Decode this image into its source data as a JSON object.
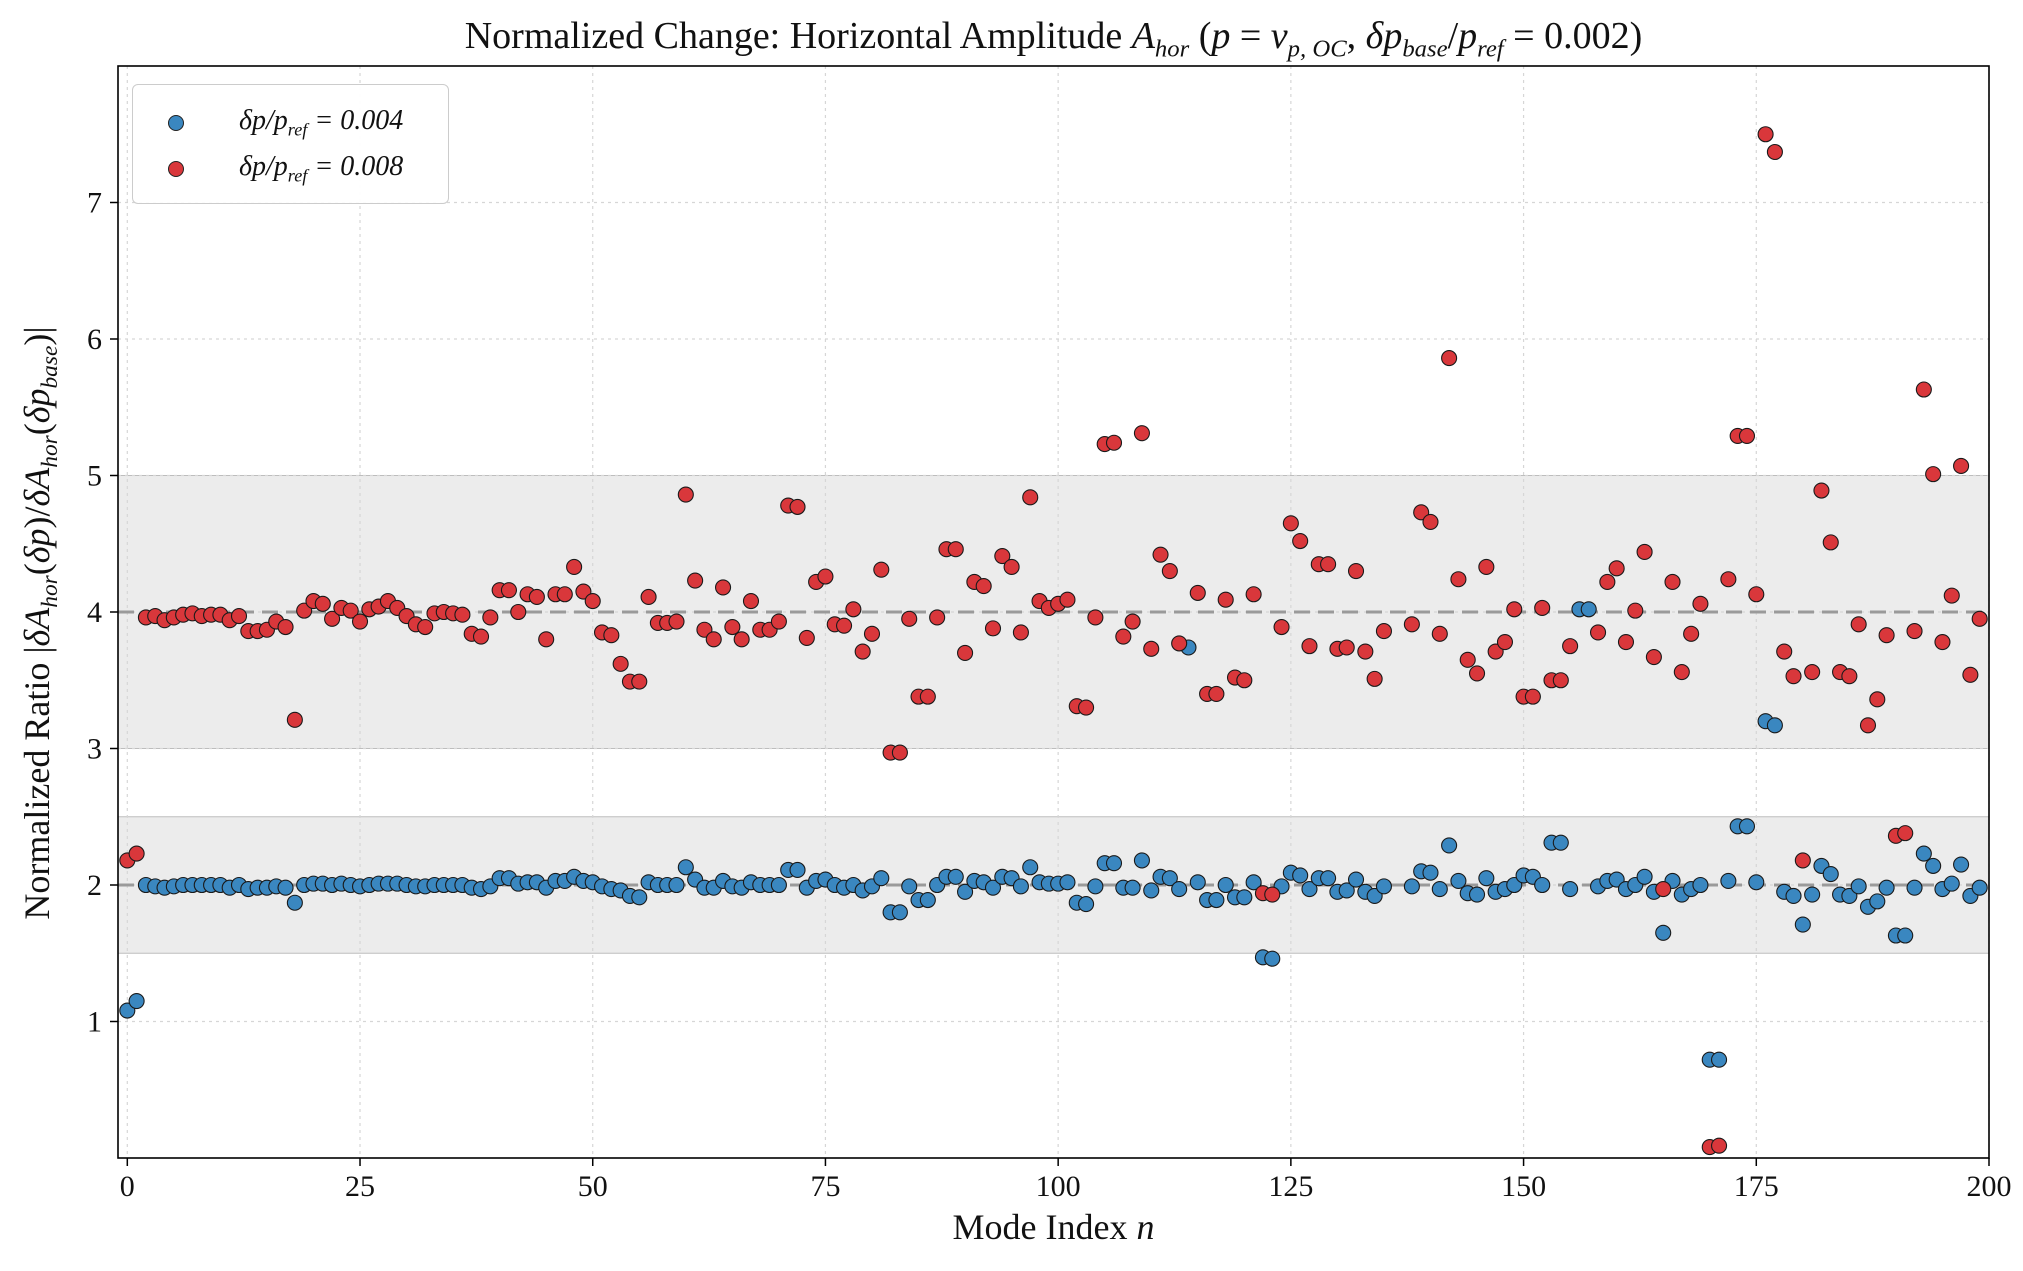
{
  "chart_data": {
    "type": "scatter",
    "title": "Normalized Change: Horizontal Amplitude A_hor (p = v_p,OC, δp_base/p_ref = 0.002)",
    "xlabel": "Mode Index n",
    "ylabel": "Normalized Ratio |δA_hor(δp)/δA_hor(δp_base)|",
    "xlim": [
      -1,
      200
    ],
    "ylim": [
      0,
      8
    ],
    "x_ticks": [
      "0",
      "25",
      "50",
      "75",
      "100",
      "125",
      "150",
      "175",
      "200"
    ],
    "y_ticks": [
      "1",
      "2",
      "3",
      "4",
      "5",
      "6",
      "7"
    ],
    "grid": true,
    "legend_position": "top-left",
    "reference_lines": [
      2,
      4
    ],
    "bands": [
      [
        1.5,
        2.5
      ],
      [
        3,
        5
      ]
    ],
    "series": [
      {
        "name": "δp/p_ref = 0.004",
        "color": "#3a87c0",
        "x": [
          0,
          1,
          2,
          3,
          4,
          5,
          6,
          7,
          8,
          9,
          10,
          11,
          12,
          13,
          14,
          15,
          16,
          17,
          18,
          19,
          20,
          21,
          22,
          23,
          24,
          25,
          26,
          27,
          28,
          29,
          30,
          31,
          32,
          33,
          34,
          35,
          36,
          37,
          38,
          39,
          40,
          41,
          42,
          43,
          44,
          45,
          46,
          47,
          48,
          49,
          50,
          51,
          52,
          53,
          54,
          55,
          56,
          57,
          58,
          59,
          60,
          61,
          62,
          63,
          64,
          65,
          66,
          67,
          68,
          69,
          70,
          71,
          72,
          73,
          74,
          75,
          76,
          77,
          78,
          79,
          80,
          81,
          82,
          83,
          84,
          85,
          86,
          87,
          88,
          89,
          90,
          91,
          92,
          93,
          94,
          95,
          96,
          97,
          98,
          99,
          100,
          101,
          102,
          103,
          104,
          105,
          106,
          107,
          108,
          109,
          110,
          111,
          112,
          113,
          114,
          115,
          116,
          117,
          118,
          119,
          120,
          121,
          122,
          123,
          124,
          125,
          126,
          127,
          128,
          129,
          130,
          131,
          132,
          133,
          134,
          135,
          138,
          139,
          140,
          141,
          142,
          143,
          144,
          145,
          146,
          147,
          148,
          149,
          150,
          151,
          152,
          153,
          154,
          155,
          156,
          157,
          158,
          159,
          160,
          161,
          162,
          163,
          164,
          165,
          166,
          167,
          168,
          169,
          170,
          171,
          172,
          173,
          174,
          175,
          176,
          177,
          178,
          179,
          180,
          181,
          182,
          183,
          184,
          185,
          186,
          187,
          188,
          189,
          190,
          191,
          192,
          193,
          194,
          195,
          196,
          197,
          198,
          199
        ],
        "y": [
          1.08,
          1.15,
          2.0,
          1.99,
          1.98,
          1.99,
          2.0,
          2.0,
          2.0,
          2.0,
          2.0,
          1.98,
          2.0,
          1.97,
          1.98,
          1.98,
          1.99,
          1.98,
          1.87,
          2.0,
          2.01,
          2.01,
          2.0,
          2.01,
          2.0,
          1.99,
          2.0,
          2.01,
          2.01,
          2.01,
          2.0,
          1.99,
          1.99,
          2.0,
          2.0,
          2.0,
          2.0,
          1.98,
          1.97,
          1.99,
          2.05,
          2.05,
          2.01,
          2.02,
          2.02,
          1.98,
          2.03,
          2.03,
          2.06,
          2.03,
          2.02,
          1.99,
          1.97,
          1.96,
          1.92,
          1.91,
          2.02,
          2.0,
          2.0,
          2.0,
          2.13,
          2.04,
          1.98,
          1.98,
          2.03,
          1.99,
          1.98,
          2.02,
          2.0,
          2.0,
          2.0,
          2.11,
          2.11,
          1.98,
          2.03,
          2.04,
          2.0,
          1.98,
          2.0,
          1.96,
          1.99,
          2.05,
          1.8,
          1.8,
          1.99,
          1.89,
          1.89,
          2.0,
          2.06,
          2.06,
          1.95,
          2.03,
          2.02,
          1.98,
          2.06,
          2.05,
          1.99,
          2.13,
          2.02,
          2.01,
          2.01,
          2.02,
          1.87,
          1.86,
          1.99,
          2.16,
          2.16,
          1.98,
          1.98,
          2.18,
          1.96,
          2.06,
          2.05,
          1.97,
          3.74,
          2.02,
          1.89,
          1.89,
          2.0,
          1.91,
          1.91,
          2.02,
          1.47,
          1.46,
          1.99,
          2.09,
          2.07,
          1.97,
          2.05,
          2.05,
          1.95,
          1.96,
          2.04,
          1.95,
          1.92,
          1.99,
          1.99,
          2.1,
          2.09,
          1.97,
          2.29,
          2.03,
          1.94,
          1.93,
          2.05,
          1.95,
          1.97,
          2.0,
          2.07,
          2.06,
          2.0,
          2.31,
          2.31,
          1.97,
          4.02,
          4.02,
          1.99,
          2.03,
          2.04,
          1.97,
          2.0,
          2.06,
          1.95,
          1.65,
          2.03,
          1.93,
          1.97,
          2.0,
          0.72,
          0.72,
          2.03,
          2.43,
          2.43,
          2.02,
          3.2,
          3.17,
          1.95,
          1.92,
          1.71,
          1.93,
          2.14,
          2.08,
          1.93,
          1.92,
          1.99,
          1.84,
          1.88,
          1.98,
          1.63,
          1.63,
          1.98,
          2.23,
          2.14,
          1.97,
          2.01,
          2.15,
          1.92,
          1.98
        ]
      },
      {
        "name": "δp/p_ref = 0.008",
        "color": "#d9373b",
        "x": [
          0,
          1,
          2,
          3,
          4,
          5,
          6,
          7,
          8,
          9,
          10,
          11,
          12,
          13,
          14,
          15,
          16,
          17,
          18,
          19,
          20,
          21,
          22,
          23,
          24,
          25,
          26,
          27,
          28,
          29,
          30,
          31,
          32,
          33,
          34,
          35,
          36,
          37,
          38,
          39,
          40,
          41,
          42,
          43,
          44,
          45,
          46,
          47,
          48,
          49,
          50,
          51,
          52,
          53,
          54,
          55,
          56,
          57,
          58,
          59,
          60,
          61,
          62,
          63,
          64,
          65,
          66,
          67,
          68,
          69,
          70,
          71,
          72,
          73,
          74,
          75,
          76,
          77,
          78,
          79,
          80,
          81,
          82,
          83,
          84,
          85,
          86,
          87,
          88,
          89,
          90,
          91,
          92,
          93,
          94,
          95,
          96,
          97,
          98,
          99,
          100,
          101,
          102,
          103,
          104,
          105,
          106,
          107,
          108,
          109,
          110,
          111,
          112,
          113,
          115,
          116,
          117,
          118,
          119,
          120,
          121,
          122,
          123,
          124,
          125,
          126,
          127,
          128,
          129,
          130,
          131,
          132,
          133,
          134,
          135,
          138,
          139,
          140,
          141,
          142,
          143,
          144,
          145,
          146,
          147,
          148,
          149,
          150,
          151,
          152,
          153,
          154,
          155,
          158,
          159,
          160,
          161,
          162,
          163,
          164,
          165,
          166,
          167,
          168,
          169,
          170,
          171,
          172,
          173,
          174,
          175,
          176,
          177,
          178,
          179,
          180,
          181,
          182,
          183,
          184,
          185,
          186,
          187,
          188,
          189,
          190,
          191,
          192,
          193,
          194,
          195,
          196,
          197,
          198,
          199
        ],
        "y": [
          2.18,
          2.23,
          3.96,
          3.97,
          3.94,
          3.96,
          3.98,
          3.99,
          3.97,
          3.98,
          3.98,
          3.94,
          3.97,
          3.86,
          3.86,
          3.87,
          3.93,
          3.89,
          3.21,
          4.01,
          4.08,
          4.06,
          3.95,
          4.03,
          4.01,
          3.93,
          4.02,
          4.04,
          4.08,
          4.03,
          3.97,
          3.91,
          3.89,
          3.99,
          4.0,
          3.99,
          3.98,
          3.84,
          3.82,
          3.96,
          4.16,
          4.16,
          4.0,
          4.13,
          4.11,
          3.8,
          4.13,
          4.13,
          4.33,
          4.15,
          4.08,
          3.85,
          3.83,
          3.62,
          3.49,
          3.49,
          4.11,
          3.92,
          3.92,
          3.93,
          4.86,
          4.23,
          3.87,
          3.8,
          4.18,
          3.89,
          3.8,
          4.08,
          3.87,
          3.87,
          3.93,
          4.78,
          4.77,
          3.81,
          4.22,
          4.26,
          3.91,
          3.9,
          4.02,
          3.71,
          3.84,
          4.31,
          2.97,
          2.97,
          3.95,
          3.38,
          3.38,
          3.96,
          4.46,
          4.46,
          3.7,
          4.22,
          4.19,
          3.88,
          4.41,
          4.33,
          3.85,
          4.84,
          4.08,
          4.03,
          4.06,
          4.09,
          3.31,
          3.3,
          3.96,
          5.23,
          5.24,
          3.82,
          3.93,
          5.31,
          3.73,
          4.42,
          4.3,
          3.77,
          4.14,
          3.4,
          3.4,
          4.09,
          3.52,
          3.5,
          4.13,
          1.94,
          1.93,
          3.89,
          4.65,
          4.52,
          3.75,
          4.35,
          4.35,
          3.73,
          3.74,
          4.3,
          3.71,
          3.51,
          3.86,
          3.91,
          4.73,
          4.66,
          3.84,
          5.86,
          4.24,
          3.65,
          3.55,
          4.33,
          3.71,
          3.78,
          4.02,
          3.38,
          3.38,
          4.03,
          3.5,
          3.5,
          3.75,
          3.85,
          4.22,
          4.32,
          3.78,
          4.01,
          4.44,
          3.67,
          1.97,
          4.22,
          3.56,
          3.84,
          4.06,
          0.08,
          0.09,
          4.24,
          5.29,
          5.29,
          4.13,
          7.5,
          7.37,
          3.71,
          3.53,
          2.18,
          3.56,
          4.89,
          4.51,
          3.56,
          3.53,
          3.91,
          3.17,
          3.36,
          3.83,
          2.36,
          2.38,
          3.86,
          5.63,
          5.01,
          3.78,
          4.12,
          5.07,
          3.54,
          3.95
        ]
      }
    ]
  }
}
